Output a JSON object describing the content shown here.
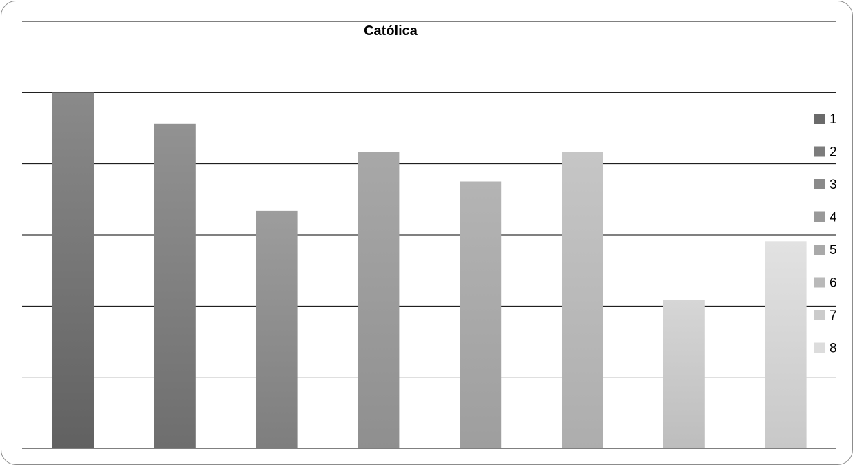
{
  "chart_data": {
    "type": "bar",
    "title": "Católica",
    "xlabel": "",
    "ylabel": "",
    "ylim": [
      0,
      6
    ],
    "grid": true,
    "legend_position": "right",
    "categories": [
      "1",
      "2",
      "3",
      "4",
      "5",
      "6",
      "7",
      "8"
    ],
    "values": [
      5.0,
      4.56,
      3.34,
      4.17,
      3.75,
      4.17,
      2.09,
      2.91
    ],
    "colors_top": [
      "#8a8a8a",
      "#929292",
      "#9d9d9d",
      "#a8a8a8",
      "#b4b4b4",
      "#c6c6c6",
      "#d6d6d6",
      "#e2e2e2"
    ],
    "colors_bottom": [
      "#616161",
      "#6e6e6e",
      "#7e7e7e",
      "#8f8f8f",
      "#9e9e9e",
      "#adadad",
      "#bdbdbd",
      "#c8c8c8"
    ],
    "legend_colors": [
      "#6a6a6a",
      "#7c7c7c",
      "#8a8a8a",
      "#999999",
      "#a9a9a9",
      "#b9b9b9",
      "#cbcbcb",
      "#dcdcdc"
    ]
  }
}
